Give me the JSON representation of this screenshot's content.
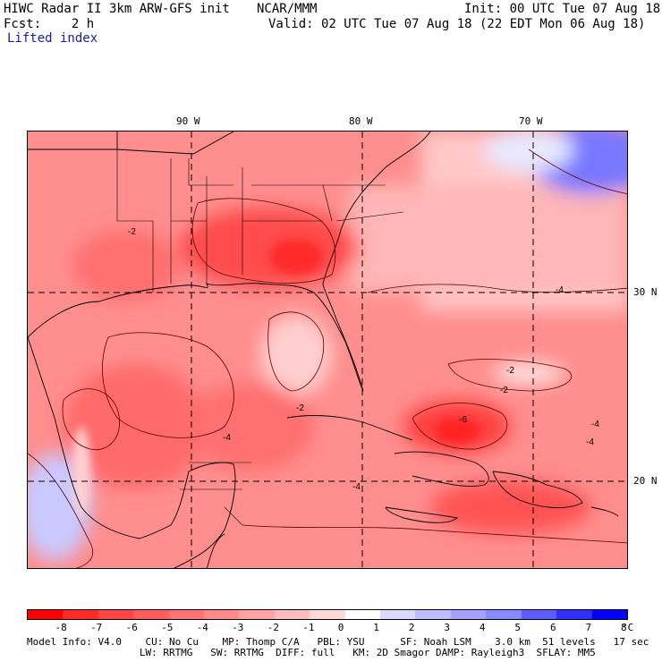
{
  "header": {
    "model_title": "HIWC Radar II 3km ARW-GFS init",
    "org": "NCAR/MMM",
    "init": "Init: 00 UTC Tue 07 Aug 18",
    "fcst": "Fcst:    2 h",
    "valid": "Valid: 02 UTC Tue 07 Aug 18 (22 EDT Mon 06 Aug 18)",
    "field": "Lifted index"
  },
  "map": {
    "lon_labels": [
      "90 W",
      "80 W",
      "70 W"
    ],
    "lat_labels": [
      "30 N",
      "20 N"
    ],
    "contour_labels": [
      "-2",
      "-2",
      "-4",
      "-2",
      "-4",
      "-6",
      "-4",
      "-4",
      "-2",
      "-4"
    ]
  },
  "colorbar": {
    "labels": [
      "-8",
      "-7",
      "-6",
      "-5",
      "-4",
      "-3",
      "-2",
      "-1",
      "0",
      "1",
      "2",
      "3",
      "4",
      "5",
      "6",
      "7",
      "8"
    ],
    "unit": "°C",
    "colors": [
      "#ff0000",
      "#ff2a2a",
      "#ff4545",
      "#ff5c5c",
      "#ff7373",
      "#ff8a8a",
      "#ffa3a3",
      "#ffbdbd",
      "#ffdada",
      "#ffffff",
      "#dadaff",
      "#bdbdff",
      "#a3a3ff",
      "#8a8aff",
      "#5c5cff",
      "#3030ff",
      "#0000ff"
    ]
  },
  "model_info": {
    "line1": "Model Info: V4.0    CU: No Cu    MP: Thomp C/A   PBL: YSU      SF: Noah LSM    3.0 km  51 levels   17 sec",
    "line2": "                   LW: RRTMG   SW: RRTMG  DIFF: full   KM: 2D Smagor DAMP: Rayleigh3  SFLAY: MM5"
  }
}
